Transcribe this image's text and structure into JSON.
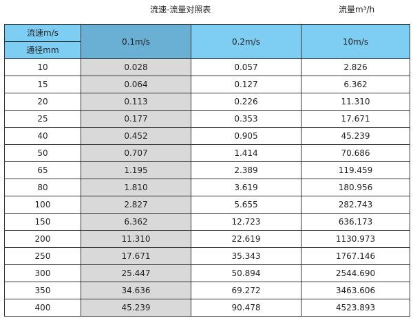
{
  "title": "流速-流量对照表",
  "unit_label": "流量m³/h",
  "header": {
    "velocity_label": "流速m/s",
    "diameter_label": "通径mm",
    "columns": [
      "0.1m/s",
      "0.2m/s",
      "10m/s"
    ]
  },
  "colors": {
    "header_bg": "#7ecef4",
    "selected_header_bg": "#6ab0d4",
    "highlight_column_bg": "#d9d9d9"
  },
  "rows": [
    {
      "diameter": "10",
      "values": [
        "0.028",
        "0.057",
        "2.826"
      ]
    },
    {
      "diameter": "15",
      "values": [
        "0.064",
        "0.127",
        "6.362"
      ]
    },
    {
      "diameter": "20",
      "values": [
        "0.113",
        "0.226",
        "11.310"
      ]
    },
    {
      "diameter": "25",
      "values": [
        "0.177",
        "0.353",
        "17.671"
      ]
    },
    {
      "diameter": "40",
      "values": [
        "0.452",
        "0.905",
        "45.239"
      ]
    },
    {
      "diameter": "50",
      "values": [
        "0.707",
        "1.414",
        "70.686"
      ]
    },
    {
      "diameter": "65",
      "values": [
        "1.195",
        "2.389",
        "119.459"
      ]
    },
    {
      "diameter": "80",
      "values": [
        "1.810",
        "3.619",
        "180.956"
      ]
    },
    {
      "diameter": "100",
      "values": [
        "2.827",
        "5.655",
        "282.743"
      ]
    },
    {
      "diameter": "150",
      "values": [
        "6.362",
        "12.723",
        "636.173"
      ]
    },
    {
      "diameter": "200",
      "values": [
        "11.310",
        "22.619",
        "1130.973"
      ]
    },
    {
      "diameter": "250",
      "values": [
        "17.671",
        "35.343",
        "1767.146"
      ]
    },
    {
      "diameter": "300",
      "values": [
        "25.447",
        "50.894",
        "2544.690"
      ]
    },
    {
      "diameter": "350",
      "values": [
        "34.636",
        "69.272",
        "3463.606"
      ]
    },
    {
      "diameter": "400",
      "values": [
        "45.239",
        "90.478",
        "4523.893"
      ]
    }
  ]
}
